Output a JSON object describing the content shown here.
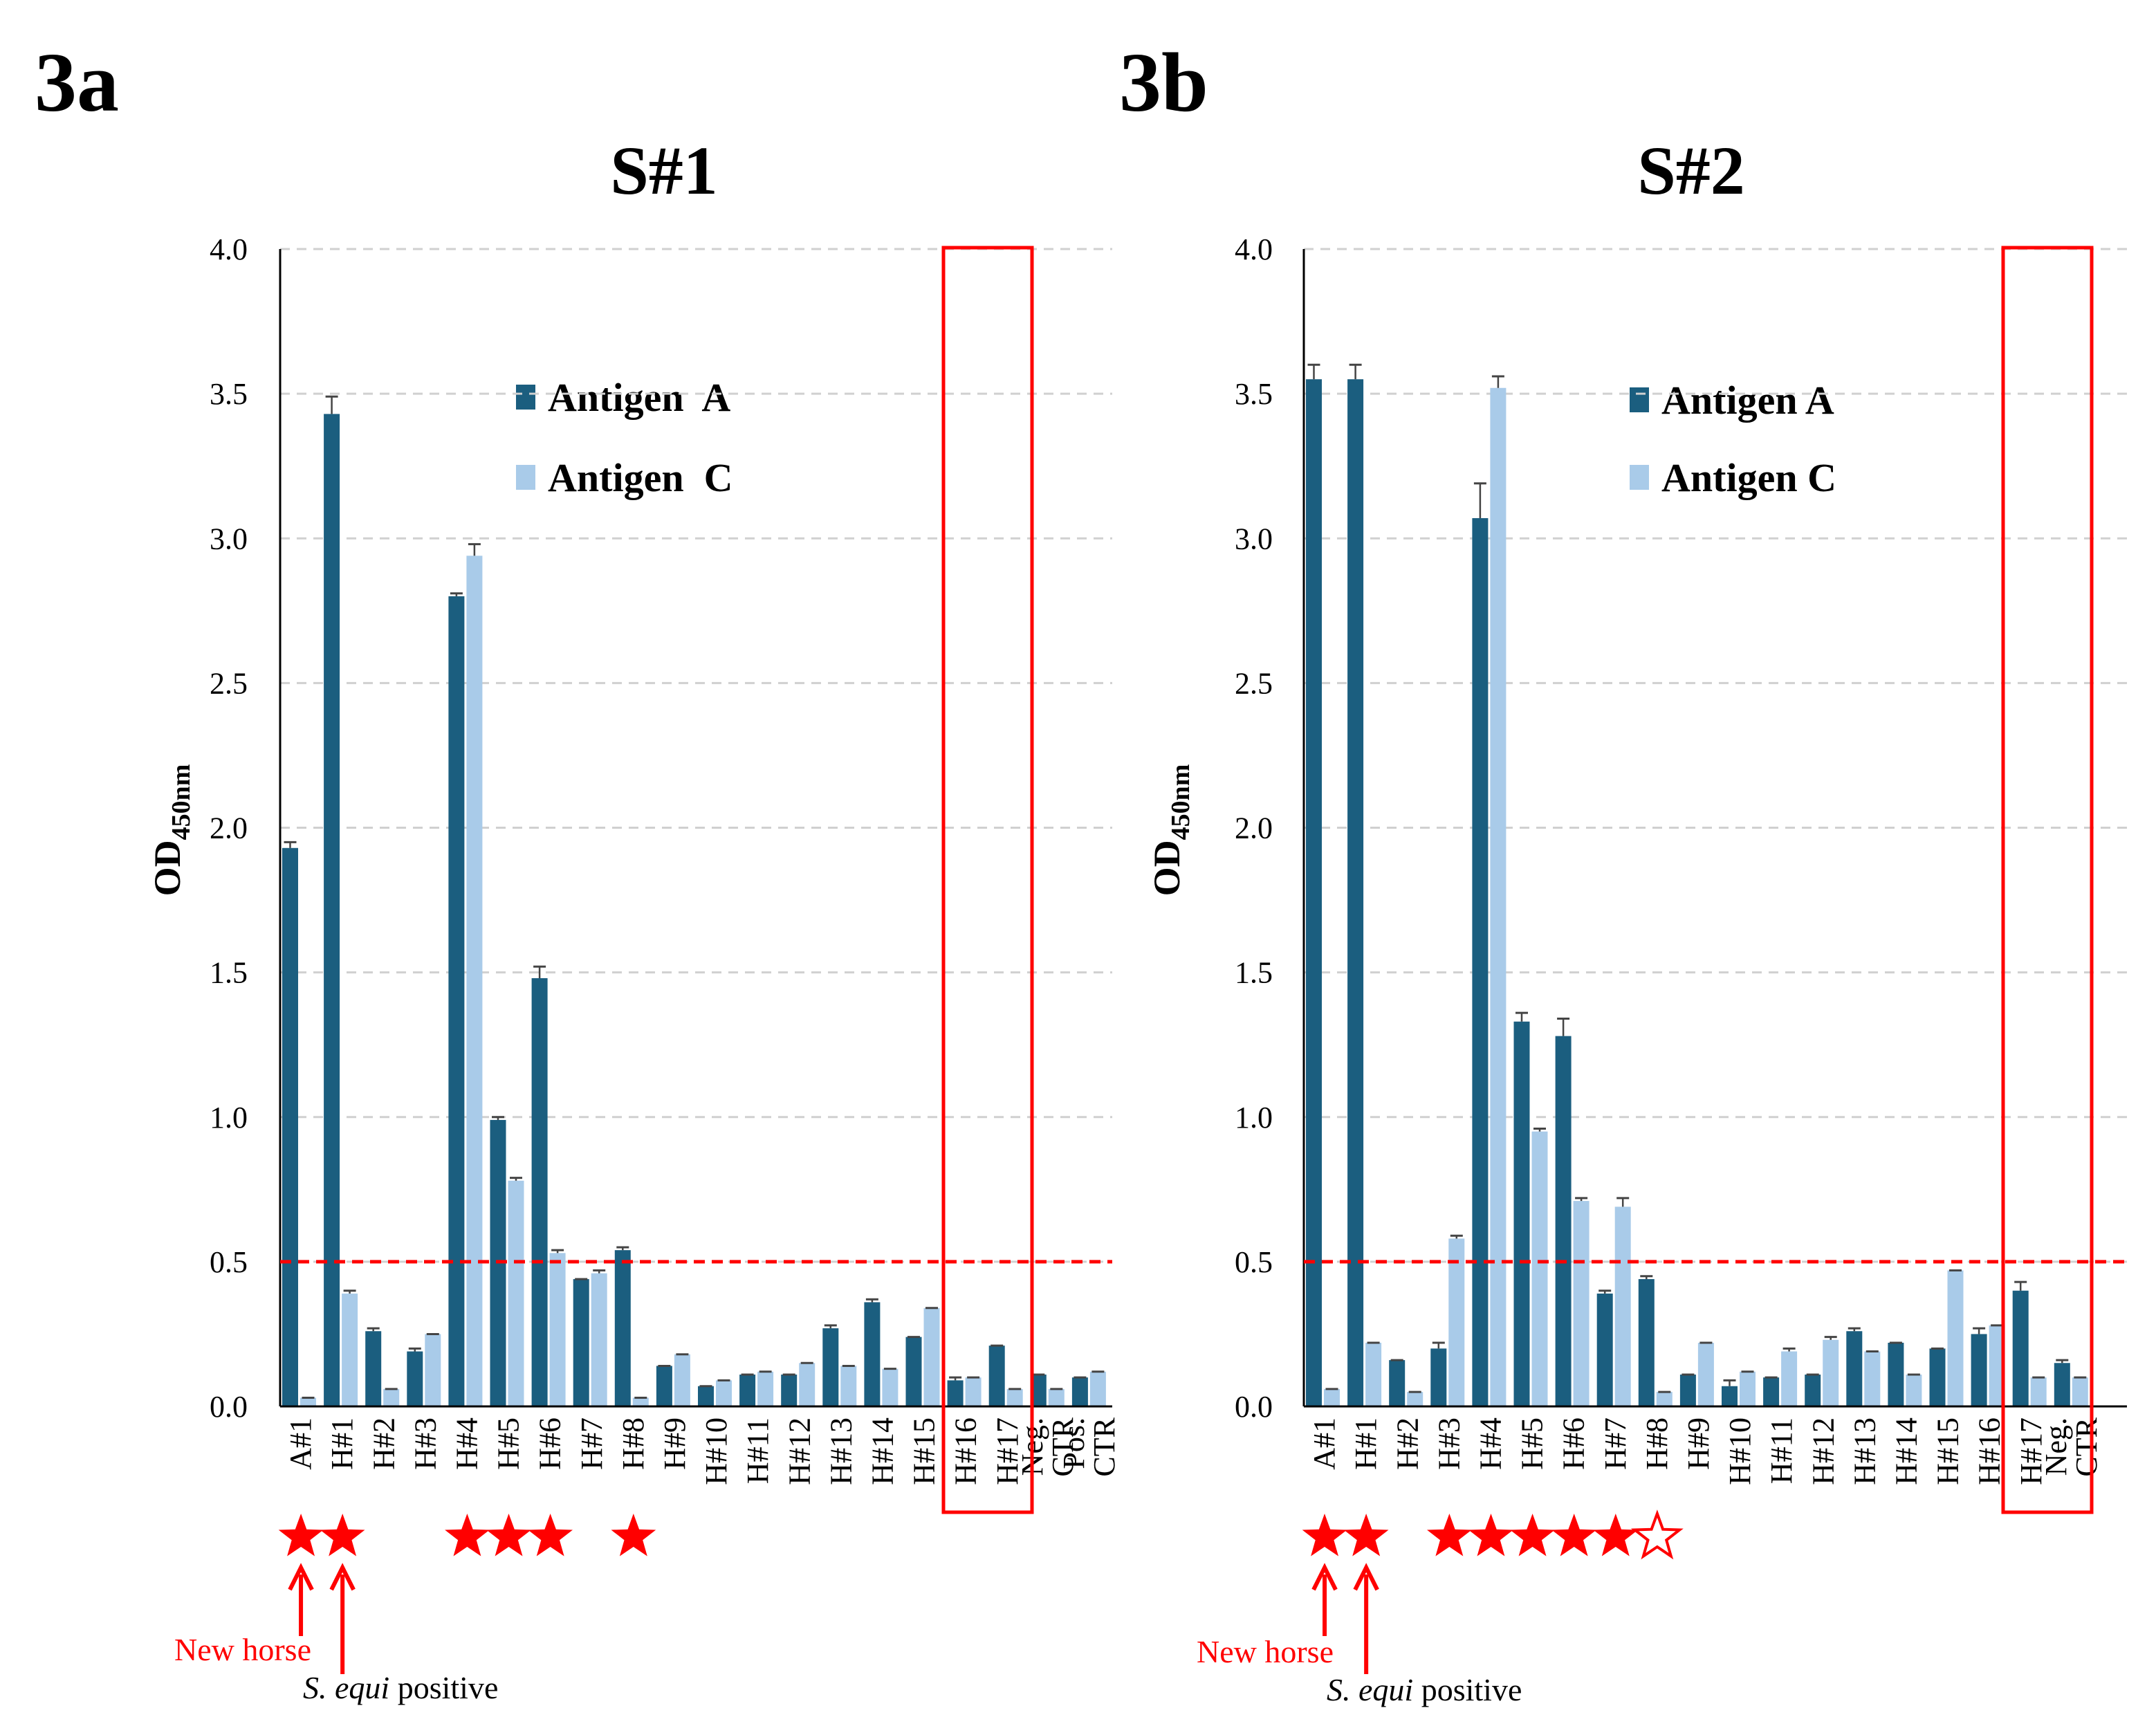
{
  "colors": {
    "antigen_a": "#1b5e7f",
    "antigen_c": "#a9cbe9",
    "cutoff": "#ff0000",
    "highlight": "#ff0000",
    "grid": "#d0d0d0",
    "error_bar": "#444444"
  },
  "chart_data": [
    {
      "type": "bar",
      "panel_label": "3a",
      "title": "S#1",
      "ylabel": "OD",
      "ylabel_subscript": "450nm",
      "ylim": [
        0,
        4.0
      ],
      "yticks": [
        "0.0",
        "0.5",
        "1.0",
        "1.5",
        "2.0",
        "2.5",
        "3.0",
        "3.5",
        "4.0"
      ],
      "grid": "horizontal dashed",
      "legend_placement": "top-center",
      "cutoff_line": 0.5,
      "categories": [
        "A#1",
        "H#1",
        "H#2",
        "H#3",
        "H#4",
        "H#5",
        "H#6",
        "H#7",
        "H#8",
        "H#9",
        "H#10",
        "H#11",
        "H#12",
        "H#13",
        "H#14",
        "H#15",
        "H#16",
        "H#17",
        "Neg. CTR",
        "Pos. CTR"
      ],
      "series": [
        {
          "name": "Antigen  A",
          "color": "#1b5e7f",
          "values": [
            1.93,
            3.43,
            0.26,
            0.19,
            2.8,
            0.99,
            1.48,
            0.44,
            0.54,
            0.14,
            0.07,
            0.11,
            0.11,
            0.27,
            0.36,
            0.24,
            0.09,
            0.21,
            0.11,
            0.1
          ],
          "errors": [
            0.02,
            0.06,
            0.01,
            0.01,
            0.01,
            0.01,
            0.04,
            0.0,
            0.01,
            0.0,
            0.0,
            0.0,
            0.0,
            0.01,
            0.01,
            0.0,
            0.01,
            0.0,
            0.0,
            0.0
          ]
        },
        {
          "name": "Antigen  C",
          "color": "#a9cbe9",
          "values": [
            0.03,
            0.39,
            0.06,
            0.25,
            2.94,
            0.78,
            0.53,
            0.46,
            0.03,
            0.18,
            0.09,
            0.12,
            0.15,
            0.14,
            0.13,
            0.34,
            0.1,
            0.06,
            0.06,
            0.12
          ],
          "errors": [
            0.0,
            0.01,
            0.0,
            0.0,
            0.04,
            0.01,
            0.01,
            0.01,
            0.0,
            0.0,
            0.0,
            0.0,
            0.0,
            0.0,
            0.0,
            0.0,
            0.0,
            0.0,
            0.0,
            0.0
          ]
        }
      ],
      "highlight_box_categories": [
        "H#16",
        "H#17"
      ],
      "star_markers": [
        {
          "category": "A#1",
          "fill": "solid"
        },
        {
          "category": "H#1",
          "fill": "solid"
        },
        {
          "category": "H#4",
          "fill": "solid"
        },
        {
          "category": "H#5",
          "fill": "solid"
        },
        {
          "category": "H#6",
          "fill": "solid"
        },
        {
          "category": "H#8",
          "fill": "solid"
        }
      ],
      "annotations": {
        "new_horse": "New horse",
        "s_equi_italic": "S. equi",
        "s_equi_rest": " positive"
      }
    },
    {
      "type": "bar",
      "panel_label": "3b",
      "title": "S#2",
      "ylabel": "OD",
      "ylabel_subscript": "450nm",
      "ylim": [
        0,
        4.0
      ],
      "yticks": [
        "0.0",
        "0.5",
        "1.0",
        "1.5",
        "2.0",
        "2.5",
        "3.0",
        "3.5",
        "4.0"
      ],
      "grid": "horizontal dashed",
      "legend_placement": "top-center",
      "cutoff_line": 0.5,
      "categories": [
        "A#1",
        "H#1",
        "H#2",
        "H#3",
        "H#4",
        "H#5",
        "H#6",
        "H#7",
        "H#8",
        "H#9",
        "H#10",
        "H#11",
        "H#12",
        "H#13",
        "H#14",
        "H#15",
        "H#16",
        "H#17",
        "Neg. CTR"
      ],
      "series": [
        {
          "name": "Antigen A",
          "color": "#1b5e7f",
          "values": [
            3.55,
            3.55,
            0.16,
            0.2,
            3.07,
            1.33,
            1.28,
            0.39,
            0.44,
            0.11,
            0.07,
            0.1,
            0.11,
            0.26,
            0.22,
            0.2,
            0.25,
            0.4,
            0.15
          ],
          "errors": [
            0.05,
            0.05,
            0.0,
            0.02,
            0.12,
            0.03,
            0.06,
            0.01,
            0.01,
            0.0,
            0.02,
            0.0,
            0.0,
            0.01,
            0.0,
            0.0,
            0.02,
            0.03,
            0.01
          ]
        },
        {
          "name": "Antigen C",
          "color": "#a9cbe9",
          "values": [
            0.06,
            0.22,
            0.05,
            0.58,
            3.52,
            0.95,
            0.71,
            0.69,
            0.05,
            0.22,
            0.12,
            0.19,
            0.23,
            0.19,
            0.11,
            0.47,
            0.28,
            0.1,
            0.1
          ],
          "errors": [
            0.0,
            0.0,
            0.0,
            0.01,
            0.04,
            0.01,
            0.01,
            0.03,
            0.0,
            0.0,
            0.0,
            0.01,
            0.01,
            0.0,
            0.0,
            0.0,
            0.0,
            0.0,
            0.0
          ]
        }
      ],
      "highlight_box_categories": [
        "H#16",
        "H#17"
      ],
      "star_markers": [
        {
          "category": "A#1",
          "fill": "solid"
        },
        {
          "category": "H#1",
          "fill": "solid"
        },
        {
          "category": "H#3",
          "fill": "solid"
        },
        {
          "category": "H#4",
          "fill": "solid"
        },
        {
          "category": "H#5",
          "fill": "solid"
        },
        {
          "category": "H#6",
          "fill": "solid"
        },
        {
          "category": "H#7",
          "fill": "solid"
        },
        {
          "category": "H#8",
          "fill": "outline"
        }
      ],
      "annotations": {
        "new_horse": "New horse",
        "s_equi_italic": "S. equi",
        "s_equi_rest": " positive"
      }
    }
  ]
}
